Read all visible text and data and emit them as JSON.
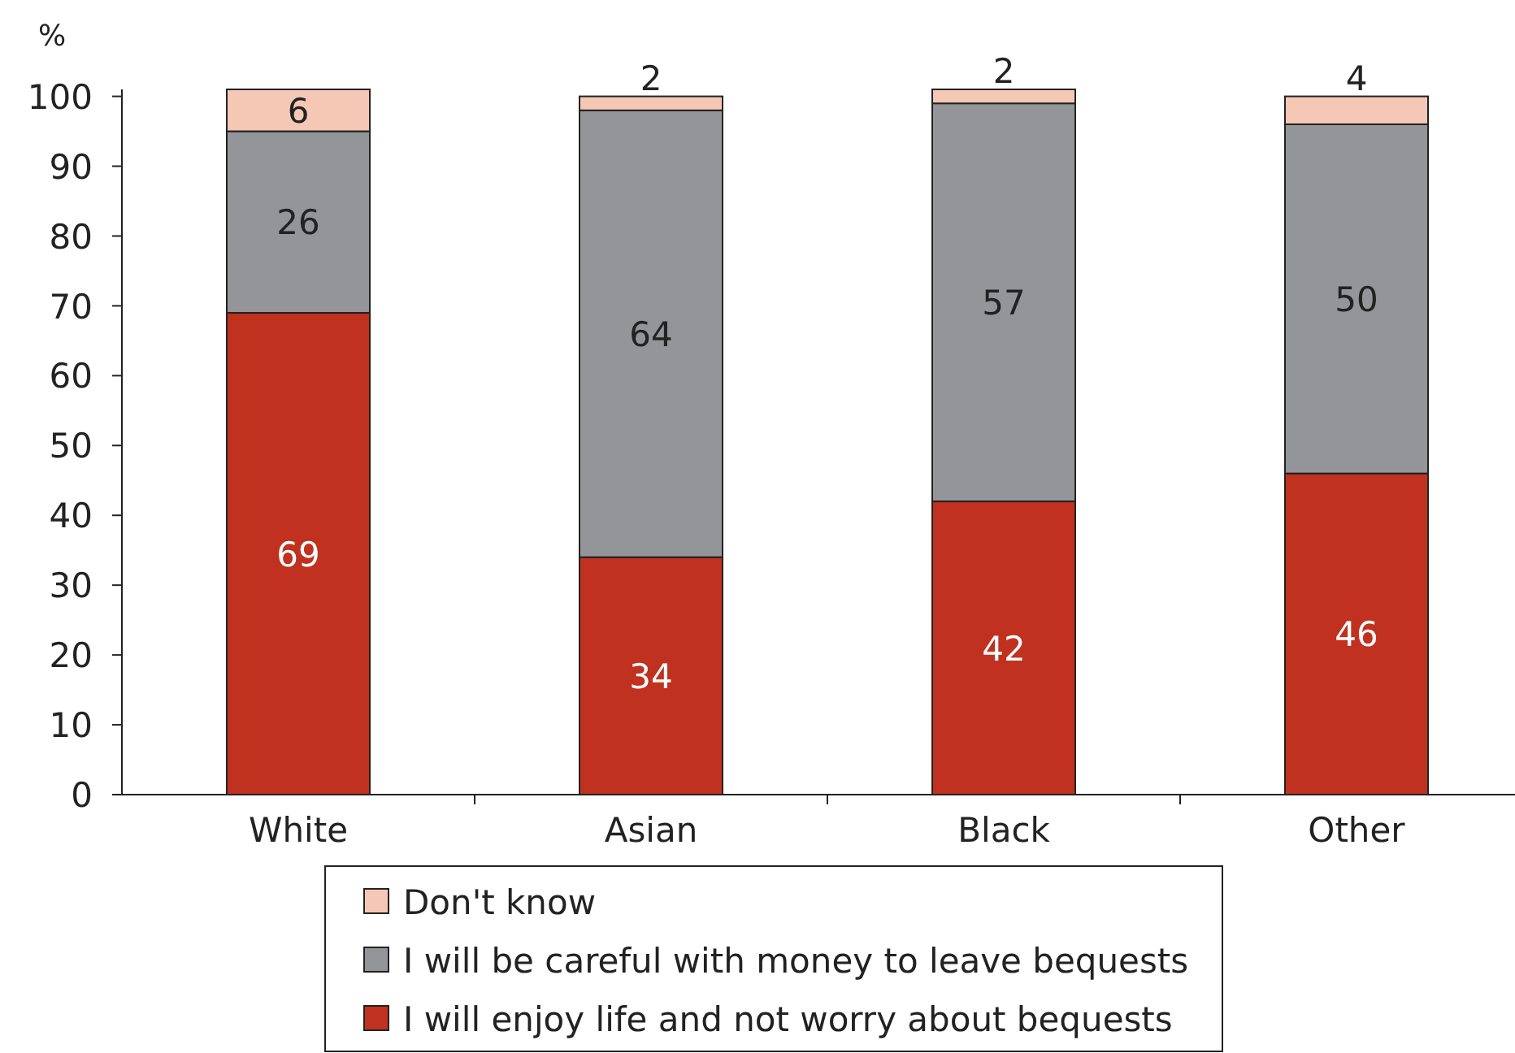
{
  "chart_data": {
    "type": "bar",
    "stacked": true,
    "ylabel": "%",
    "categories": [
      "White",
      "Asian",
      "Black",
      "Other"
    ],
    "series": [
      {
        "name": "I will enjoy life and not worry about bequests",
        "color": "#c0311f",
        "values": [
          69,
          34,
          42,
          46
        ]
      },
      {
        "name": "I will be careful with money to leave bequests",
        "color": "#939598",
        "values": [
          26,
          64,
          57,
          50
        ]
      },
      {
        "name": "Don't know",
        "color": "#f4c8b4",
        "values": [
          6,
          2,
          2,
          4
        ]
      }
    ],
    "ylim": [
      0,
      101
    ],
    "yticks": [
      0,
      10,
      20,
      30,
      40,
      50,
      60,
      70,
      80,
      90,
      100
    ],
    "data_labels": true,
    "legend": "bottom",
    "grid": false
  }
}
